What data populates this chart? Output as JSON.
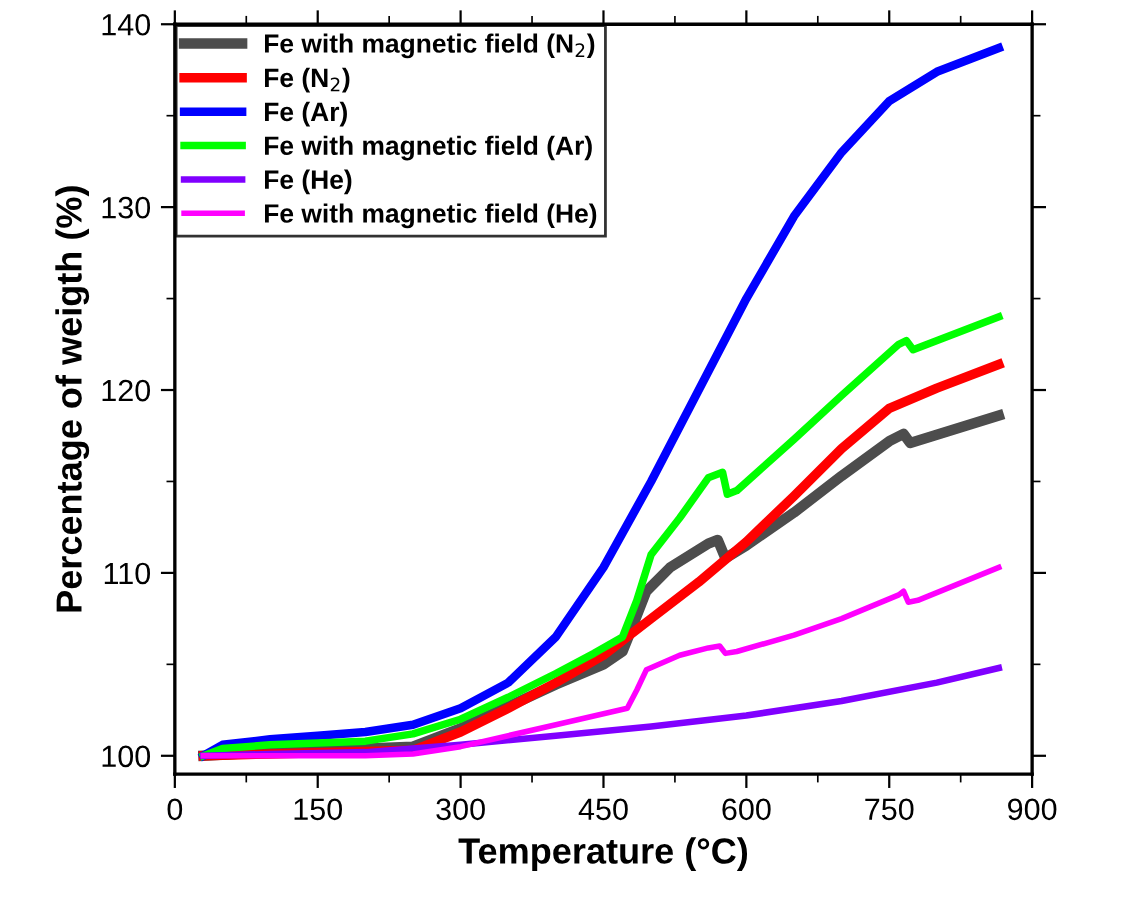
{
  "chart_data": {
    "type": "line",
    "xlabel": "Temperature (°C)",
    "ylabel": "Percentage of weigth (%)",
    "xlim": [
      0,
      900
    ],
    "ylim": [
      99,
      140
    ],
    "xticks": [
      0,
      150,
      300,
      450,
      600,
      750,
      900
    ],
    "yticks": [
      100,
      110,
      120,
      130,
      140
    ],
    "grid": false,
    "legend": "top left",
    "marker": "none",
    "line_style": "solid",
    "series": [
      {
        "name": "Fe with magnetic field (N$_{2}$)",
        "color": "#4d4d4d",
        "x": [
          30,
          100,
          250,
          300,
          350,
          400,
          450,
          470,
          480,
          495,
          520,
          560,
          570,
          578,
          600,
          650,
          700,
          750,
          765,
          772,
          865
        ],
        "values": [
          100,
          100.2,
          100.5,
          101.5,
          102.7,
          103.9,
          105,
          105.7,
          107,
          109,
          110.3,
          111.6,
          111.8,
          110.8,
          111.5,
          113.3,
          115.3,
          117.2,
          117.6,
          117.1,
          118.6
        ]
      },
      {
        "name": "Fe (N$_{2}$)",
        "color": "#ff0000",
        "x": [
          30,
          100,
          250,
          300,
          350,
          400,
          450,
          500,
          550,
          600,
          650,
          700,
          750,
          800,
          865
        ],
        "values": [
          100,
          100.1,
          100.3,
          101.3,
          102.6,
          104,
          105.5,
          107.5,
          109.5,
          111.7,
          114.2,
          116.8,
          119,
          120.1,
          121.4
        ]
      },
      {
        "name": "Fe (Ar)",
        "color": "#0000ff",
        "x": [
          30,
          50,
          100,
          150,
          200,
          250,
          300,
          350,
          400,
          450,
          500,
          550,
          600,
          650,
          700,
          750,
          800,
          865
        ],
        "values": [
          100,
          100.6,
          100.9,
          101.1,
          101.3,
          101.7,
          102.6,
          104,
          106.5,
          110.3,
          115,
          120,
          125,
          129.5,
          133,
          135.8,
          137.4,
          138.7
        ]
      },
      {
        "name": "Fe with magnetic field (Ar)",
        "color": "#00ff00",
        "x": [
          30,
          50,
          100,
          200,
          250,
          300,
          350,
          400,
          440,
          470,
          485,
          500,
          530,
          560,
          575,
          580,
          590,
          650,
          700,
          760,
          768,
          775,
          865
        ],
        "values": [
          100,
          100.4,
          100.6,
          100.8,
          101.2,
          102,
          103.2,
          104.5,
          105.6,
          106.5,
          108.5,
          111,
          113,
          115.2,
          115.5,
          114.3,
          114.5,
          117.3,
          119.7,
          122.5,
          122.7,
          122.2,
          124
        ]
      },
      {
        "name": "Fe (He)",
        "color": "#8000ff",
        "x": [
          30,
          100,
          200,
          300,
          400,
          500,
          600,
          700,
          800,
          865
        ],
        "values": [
          100,
          100.1,
          100.2,
          100.6,
          101.1,
          101.6,
          102.2,
          103,
          104,
          104.8
        ]
      },
      {
        "name": "Fe with magnetic field (He)",
        "color": "#ff00ff",
        "x": [
          30,
          100,
          200,
          250,
          300,
          350,
          400,
          450,
          475,
          485,
          495,
          530,
          560,
          572,
          578,
          590,
          650,
          700,
          760,
          765,
          770,
          780,
          865
        ],
        "values": [
          100,
          100,
          100,
          100.1,
          100.5,
          101.1,
          101.7,
          102.3,
          102.6,
          103.6,
          104.7,
          105.5,
          105.9,
          106,
          105.6,
          105.7,
          106.6,
          107.5,
          108.8,
          109,
          108.4,
          108.5,
          110.3
        ]
      }
    ]
  }
}
